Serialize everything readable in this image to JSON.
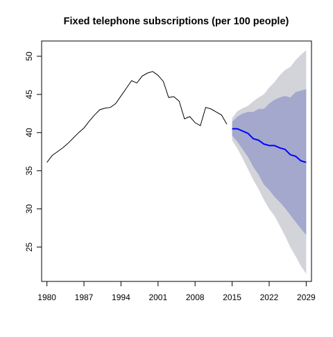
{
  "chart_data": {
    "type": "line",
    "title": "Fixed telephone subscriptions (per 100 people)",
    "xlabel": "",
    "ylabel": "",
    "xlim": [
      1979,
      2030
    ],
    "ylim": [
      20.5,
      52
    ],
    "grid": false,
    "x_ticks": [
      1980,
      1987,
      1994,
      2001,
      2008,
      2015,
      2022,
      2029
    ],
    "y_ticks": [
      25,
      30,
      35,
      40,
      45,
      50
    ],
    "colors": {
      "history": "#000000",
      "forecast": "#0000ff",
      "band_80": "#a3a8cc",
      "band_95": "#d3d3da"
    },
    "history": {
      "x": [
        1980,
        1981,
        1982,
        1983,
        1984,
        1985,
        1986,
        1987,
        1988,
        1989,
        1990,
        1991,
        1992,
        1993,
        1994,
        1995,
        1996,
        1997,
        1998,
        1999,
        2000,
        2001,
        2002,
        2003,
        2004,
        2005,
        2006,
        2007,
        2008,
        2009,
        2010,
        2011,
        2012,
        2013,
        2014
      ],
      "y": [
        36.1,
        37.0,
        37.5,
        38.0,
        38.6,
        39.3,
        40.0,
        40.6,
        41.5,
        42.3,
        43.0,
        43.2,
        43.3,
        43.8,
        44.8,
        45.8,
        46.8,
        46.5,
        47.4,
        47.8,
        48.0,
        47.5,
        46.7,
        44.6,
        44.7,
        44.1,
        41.8,
        42.1,
        41.3,
        40.9,
        43.3,
        43.1,
        42.7,
        42.3,
        41.1
      ]
    },
    "forecast": {
      "x": [
        2015,
        2016,
        2017,
        2018,
        2019,
        2020,
        2021,
        2022,
        2023,
        2024,
        2025,
        2026,
        2027,
        2028,
        2029
      ],
      "y": [
        40.5,
        40.5,
        40.2,
        39.9,
        39.2,
        39.0,
        38.5,
        38.3,
        38.3,
        38.0,
        37.8,
        37.1,
        36.9,
        36.3,
        36.1
      ]
    },
    "interval_80": {
      "lower": [
        39.6,
        38.8,
        37.8,
        36.8,
        35.5,
        34.5,
        33.2,
        32.5,
        31.6,
        30.9,
        30.1,
        29.2,
        28.3,
        27.4,
        26.6
      ],
      "upper": [
        41.4,
        42.1,
        42.5,
        42.7,
        42.7,
        43.1,
        43.1,
        43.8,
        44.3,
        44.6,
        44.8,
        44.6,
        45.3,
        45.5,
        45.7
      ]
    },
    "interval_95": {
      "lower": [
        39.0,
        37.9,
        36.6,
        35.2,
        33.8,
        32.6,
        31.2,
        30.0,
        29.1,
        27.8,
        26.5,
        25.0,
        23.8,
        22.5,
        21.5
      ],
      "upper": [
        41.9,
        42.8,
        43.2,
        43.5,
        44.1,
        44.6,
        45.0,
        45.9,
        46.6,
        47.5,
        48.2,
        48.6,
        49.5,
        50.2,
        50.8
      ]
    }
  }
}
